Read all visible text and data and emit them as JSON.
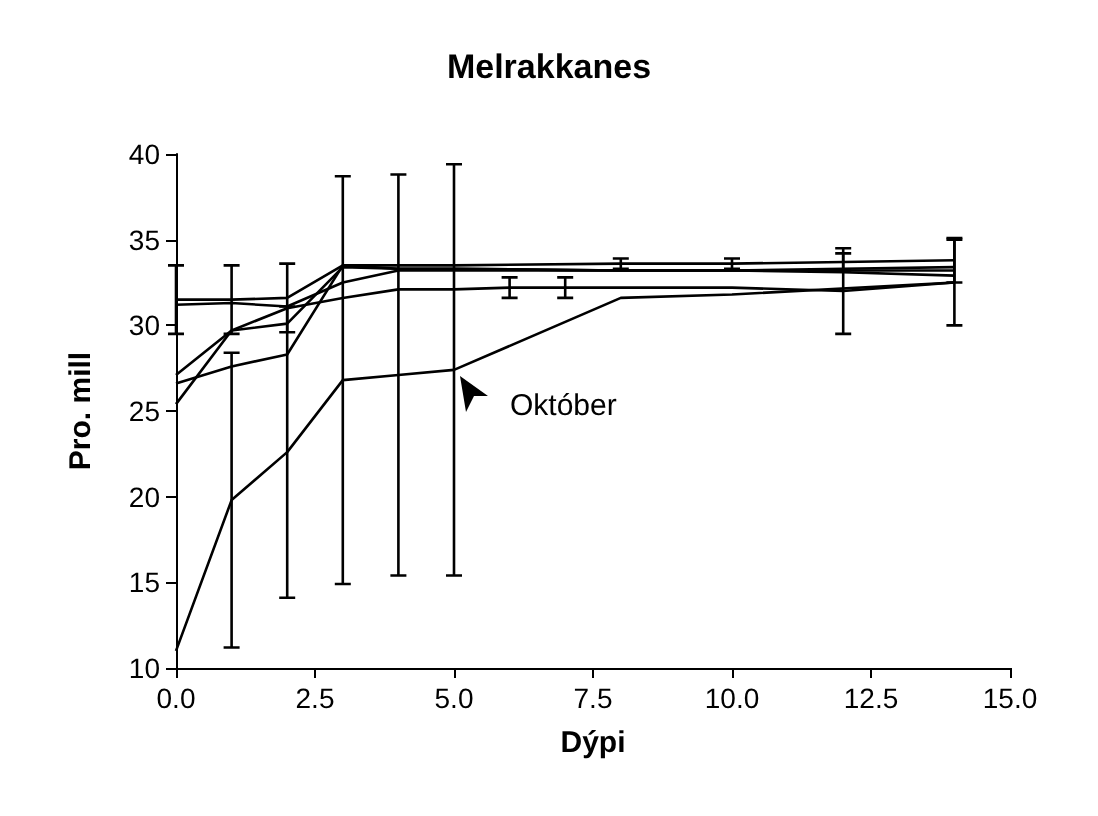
{
  "chart_data": {
    "type": "line",
    "title": "Melrakkanes",
    "xlabel": "Dýpi",
    "ylabel": "Pro. mill",
    "xlim": [
      0,
      15
    ],
    "xticks": [
      {
        "value": 0,
        "label": "0.0"
      },
      {
        "value": 2.5,
        "label": "2.5"
      },
      {
        "value": 5,
        "label": "5.0"
      },
      {
        "value": 7.5,
        "label": "7.5"
      },
      {
        "value": 10,
        "label": "10.0"
      },
      {
        "value": 12.5,
        "label": "12.5"
      },
      {
        "value": 15,
        "label": "15.0"
      }
    ],
    "ylim": [
      10,
      40
    ],
    "yticks": [
      10,
      15,
      20,
      25,
      30,
      35,
      40
    ],
    "marker": "none",
    "annotations": [
      {
        "text": "Október",
        "x": 5,
        "y": 27.4
      }
    ],
    "series": [
      {
        "color": "#000000",
        "x": [
          0,
          1,
          2,
          3,
          4,
          5,
          8,
          10,
          14
        ],
        "values": [
          11,
          19.8,
          22.6,
          26.8,
          27.1,
          27.4,
          31.6,
          31.8,
          32.5
        ],
        "errors": [
          null,
          8.6,
          8.5,
          11.9,
          11.7,
          12,
          null,
          null,
          null
        ]
      },
      {
        "color": "#000000",
        "x": [
          0,
          1,
          2,
          3,
          4,
          5,
          8,
          10,
          12,
          14
        ],
        "values": [
          31.5,
          31.5,
          31.6,
          33.5,
          33.5,
          33.5,
          33.6,
          33.6,
          33.7,
          33.8
        ],
        "errors": [
          2,
          2,
          2,
          null,
          null,
          null,
          0.3,
          0.3,
          0.5,
          1.3
        ]
      },
      {
        "color": "#000000",
        "x": [
          0,
          1,
          2,
          3,
          4,
          5,
          8,
          10,
          12,
          14
        ],
        "values": [
          31.2,
          31.3,
          31.1,
          32.5,
          33.2,
          33.2,
          33.2,
          33.2,
          33.3,
          33.4
        ],
        "errors": [
          null,
          null,
          null,
          null,
          null,
          null,
          null,
          null,
          null,
          null
        ]
      },
      {
        "color": "#000000",
        "x": [
          0,
          1,
          2,
          3,
          4,
          5,
          8,
          10,
          12,
          14
        ],
        "values": [
          27.1,
          29.7,
          30.1,
          33.4,
          33.3,
          33.3,
          33.2,
          33.2,
          33.2,
          33.2
        ],
        "errors": [
          null,
          null,
          null,
          null,
          null,
          null,
          null,
          null,
          null,
          null
        ]
      },
      {
        "color": "#000000",
        "x": [
          0,
          1,
          2,
          3,
          4,
          5,
          8,
          10,
          12,
          14
        ],
        "values": [
          26.6,
          27.6,
          28.3,
          33.5,
          33.3,
          33.3,
          33.2,
          33.2,
          33.1,
          32.9
        ],
        "errors": [
          null,
          null,
          null,
          null,
          null,
          null,
          null,
          null,
          null,
          null
        ]
      },
      {
        "color": "#000000",
        "x": [
          0,
          1,
          2,
          3,
          4,
          5,
          6,
          7,
          8,
          10,
          12,
          14
        ],
        "values": [
          25.4,
          29.7,
          31,
          31.6,
          32.1,
          32.1,
          32.2,
          32.2,
          32.2,
          32.2,
          32,
          32.5
        ],
        "errors": [
          null,
          null,
          null,
          null,
          null,
          null,
          0.6,
          0.6,
          null,
          null,
          2.5,
          2.5
        ]
      }
    ]
  }
}
